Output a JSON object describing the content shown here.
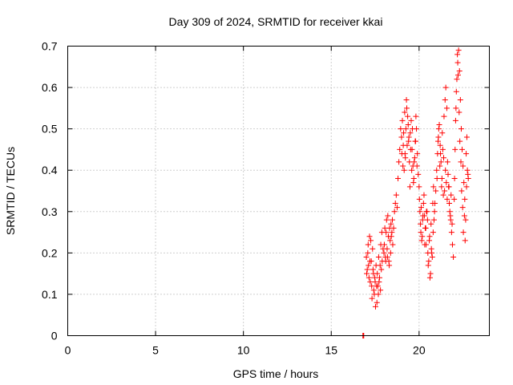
{
  "chart_data": {
    "type": "scatter",
    "title": "Day 309 of 2024, SRMTID for receiver kkai",
    "xlabel": "GPS time / hours",
    "ylabel": "SRMTID / TECUs",
    "xlim": [
      0,
      24
    ],
    "ylim": [
      0,
      0.7
    ],
    "xticks": [
      0,
      5,
      10,
      15,
      20
    ],
    "xtick_labels": [
      "0",
      "5",
      "10",
      "15",
      "20"
    ],
    "yticks": [
      0,
      0.1,
      0.2,
      0.3,
      0.4,
      0.5,
      0.6,
      0.7
    ],
    "ytick_labels": [
      "0",
      "0.1",
      "0.2",
      "0.3",
      "0.4",
      "0.5",
      "0.6",
      "0.7"
    ],
    "grid": true,
    "marker": "plus",
    "color": "#ff0000",
    "series": [
      {
        "name": "SRMTID",
        "x": [
          16.8,
          16.82,
          16.85,
          17.0,
          17.05,
          17.1,
          17.15,
          17.2,
          17.25,
          17.3,
          17.35,
          17.4,
          17.45,
          17.5,
          17.55,
          17.6,
          17.65,
          17.7,
          17.75,
          17.8,
          17.85,
          17.9,
          17.95,
          17.02,
          17.08,
          17.12,
          17.18,
          17.22,
          17.28,
          17.32,
          17.38,
          17.42,
          17.48,
          17.52,
          17.58,
          17.62,
          17.68,
          17.72,
          17.78,
          17.82,
          17.88,
          18.0,
          18.05,
          18.1,
          18.15,
          18.2,
          18.25,
          18.3,
          18.35,
          18.4,
          18.45,
          18.5,
          18.55,
          18.02,
          18.08,
          18.12,
          18.18,
          18.22,
          18.28,
          18.32,
          18.38,
          18.42,
          18.48,
          18.6,
          18.65,
          18.7,
          18.75,
          18.8,
          18.85,
          18.9,
          18.95,
          19.0,
          19.05,
          19.1,
          19.15,
          19.2,
          19.25,
          19.3,
          19.35,
          19.4,
          19.45,
          19.5,
          19.55,
          19.6,
          19.65,
          19.7,
          19.75,
          19.8,
          19.85,
          19.9,
          19.95,
          19.02,
          19.08,
          19.12,
          19.18,
          19.22,
          19.28,
          19.32,
          19.38,
          19.42,
          19.48,
          19.52,
          19.58,
          19.62,
          19.68,
          19.72,
          19.78,
          19.82,
          19.88,
          20.0,
          20.05,
          20.1,
          20.15,
          20.2,
          20.25,
          20.3,
          20.35,
          20.4,
          20.45,
          20.5,
          20.55,
          20.6,
          20.65,
          20.7,
          20.75,
          20.8,
          20.85,
          20.9,
          20.95,
          20.02,
          20.08,
          20.12,
          20.18,
          20.22,
          20.28,
          20.32,
          20.38,
          20.42,
          20.48,
          20.52,
          20.58,
          20.62,
          20.68,
          20.72,
          20.78,
          20.82,
          20.88,
          21.0,
          21.05,
          21.1,
          21.15,
          21.2,
          21.25,
          21.3,
          21.35,
          21.4,
          21.45,
          21.5,
          21.55,
          21.6,
          21.65,
          21.7,
          21.75,
          21.8,
          21.85,
          21.9,
          21.95,
          21.02,
          21.08,
          21.12,
          21.18,
          21.22,
          21.28,
          21.32,
          21.38,
          21.42,
          21.48,
          21.52,
          21.58,
          21.62,
          21.68,
          21.72,
          21.78,
          21.82,
          21.88,
          22.0,
          22.05,
          22.1,
          22.15,
          22.2,
          22.25,
          22.3,
          22.35,
          22.4,
          22.45,
          22.5,
          22.55,
          22.6,
          22.65,
          22.7,
          22.75,
          22.8,
          22.02,
          22.08,
          22.12,
          22.18,
          22.22,
          22.28,
          22.32,
          22.38,
          22.42,
          22.48,
          22.52,
          22.58,
          22.62,
          22.68,
          22.72,
          22.78
        ],
        "y": [
          0.0,
          0.0,
          0.0,
          0.19,
          0.16,
          0.22,
          0.14,
          0.18,
          0.23,
          0.12,
          0.21,
          0.15,
          0.1,
          0.13,
          0.17,
          0.08,
          0.12,
          0.19,
          0.14,
          0.11,
          0.16,
          0.18,
          0.21,
          0.15,
          0.2,
          0.17,
          0.24,
          0.13,
          0.18,
          0.09,
          0.16,
          0.11,
          0.14,
          0.07,
          0.12,
          0.15,
          0.1,
          0.13,
          0.17,
          0.22,
          0.25,
          0.2,
          0.26,
          0.18,
          0.28,
          0.19,
          0.24,
          0.17,
          0.23,
          0.27,
          0.25,
          0.22,
          0.26,
          0.22,
          0.19,
          0.25,
          0.21,
          0.29,
          0.18,
          0.26,
          0.2,
          0.24,
          0.28,
          0.3,
          0.32,
          0.34,
          0.31,
          0.38,
          0.42,
          0.45,
          0.5,
          0.48,
          0.52,
          0.46,
          0.4,
          0.44,
          0.5,
          0.55,
          0.53,
          0.47,
          0.42,
          0.49,
          0.52,
          0.45,
          0.41,
          0.38,
          0.43,
          0.47,
          0.5,
          0.44,
          0.39,
          0.44,
          0.41,
          0.49,
          0.54,
          0.43,
          0.57,
          0.46,
          0.51,
          0.48,
          0.36,
          0.45,
          0.4,
          0.5,
          0.37,
          0.42,
          0.47,
          0.53,
          0.41,
          0.36,
          0.3,
          0.25,
          0.23,
          0.28,
          0.32,
          0.29,
          0.26,
          0.22,
          0.3,
          0.2,
          0.18,
          0.24,
          0.15,
          0.21,
          0.19,
          0.25,
          0.28,
          0.32,
          0.35,
          0.33,
          0.27,
          0.31,
          0.24,
          0.29,
          0.34,
          0.22,
          0.26,
          0.3,
          0.28,
          0.17,
          0.23,
          0.14,
          0.27,
          0.2,
          0.32,
          0.36,
          0.3,
          0.4,
          0.44,
          0.48,
          0.51,
          0.46,
          0.42,
          0.38,
          0.45,
          0.43,
          0.35,
          0.4,
          0.37,
          0.33,
          0.39,
          0.36,
          0.3,
          0.28,
          0.25,
          0.22,
          0.19,
          0.38,
          0.47,
          0.5,
          0.41,
          0.44,
          0.36,
          0.49,
          0.34,
          0.53,
          0.57,
          0.6,
          0.55,
          0.42,
          0.36,
          0.32,
          0.29,
          0.34,
          0.27,
          0.33,
          0.45,
          0.55,
          0.62,
          0.66,
          0.69,
          0.64,
          0.57,
          0.5,
          0.45,
          0.41,
          0.37,
          0.33,
          0.28,
          0.36,
          0.4,
          0.38,
          0.38,
          0.52,
          0.59,
          0.68,
          0.63,
          0.54,
          0.47,
          0.42,
          0.35,
          0.31,
          0.25,
          0.29,
          0.23,
          0.44,
          0.48,
          0.39
        ]
      }
    ]
  }
}
